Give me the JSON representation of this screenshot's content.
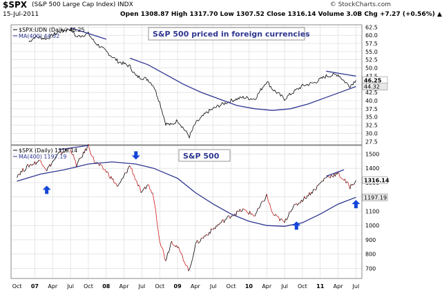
{
  "header": {
    "symbol": "$SPX",
    "description": "(S&P 500 Large Cap Index)  INDX",
    "date": "15-Jul-2011",
    "quote": "Open 1308.87   High 1317.70   Low 1307.52   Close 1316.14   Volume 3.0B   Chg +7.27 (+0.56%) ▲",
    "credit": "© StockCharts.com"
  },
  "colors": {
    "price_line": "#000000",
    "price_down": "#cc1a1a",
    "moving_average": "#2d3591",
    "annotation": "#2d3591",
    "arrow": "#1446d8",
    "grid": "#d7d7d7",
    "panel_divider": "#6c6c6c"
  },
  "icons": {
    "signal_arrows": "blue-arrow-icon"
  },
  "chart_data": [
    {
      "type": "line",
      "title": "S&P 500 priced in foreign currencies",
      "legend": [
        "$SPX:UDN (Daily) 46.25",
        "MA(400) 44.32"
      ],
      "legend_position": "top-left",
      "ylim": [
        26.5,
        63.2
      ],
      "y_ticks": [
        27.5,
        30.0,
        32.5,
        35.0,
        37.5,
        40.0,
        42.5,
        45.0,
        47.5,
        50.0,
        52.5,
        55.0,
        57.5,
        60.0,
        62.5
      ],
      "y_tick_labels": [
        "27.5",
        "30.0",
        "32.5",
        "35.0",
        "37.5",
        "40.0",
        "42.5",
        "45.0",
        "47.5",
        "50.0",
        "52.5",
        "55.0",
        "57.5",
        "60.0",
        "62.5"
      ],
      "last_value_labels": [
        "46.25",
        "44.32"
      ],
      "grid": true,
      "series": [
        {
          "name": "$SPX:UDN (Daily)",
          "x": [
            "2006-12",
            "2007-01",
            "2007-03",
            "2007-05",
            "2007-07",
            "2007-08",
            "2007-10",
            "2007-11",
            "2008-01",
            "2008-03",
            "2008-05",
            "2008-06",
            "2008-08",
            "2008-09",
            "2008-10",
            "2008-11",
            "2008-12",
            "2009-01",
            "2009-03",
            "2009-04",
            "2009-06",
            "2009-08",
            "2009-10",
            "2009-12",
            "2010-02",
            "2010-04",
            "2010-05",
            "2010-07",
            "2010-08",
            "2010-10",
            "2010-12",
            "2011-02",
            "2011-04",
            "2011-05",
            "2011-06",
            "2011-07"
          ],
          "values": [
            58.0,
            59.5,
            59.0,
            61.0,
            62.0,
            59.5,
            60.5,
            58.0,
            55.0,
            52.0,
            50.5,
            47.5,
            46.5,
            44.5,
            39.5,
            33.0,
            32.5,
            34.0,
            29.0,
            33.0,
            36.5,
            38.5,
            40.0,
            41.0,
            40.5,
            46.0,
            43.5,
            40.5,
            42.0,
            44.5,
            45.5,
            47.5,
            48.0,
            46.0,
            44.5,
            46.25
          ]
        },
        {
          "name": "MA(400)",
          "x": [
            "2008-05",
            "2008-08",
            "2008-11",
            "2009-02",
            "2009-05",
            "2009-08",
            "2009-11",
            "2010-02",
            "2010-05",
            "2010-08",
            "2010-11",
            "2011-02",
            "2011-05",
            "2011-07"
          ],
          "values": [
            53.0,
            51.0,
            48.0,
            45.0,
            42.5,
            40.5,
            38.5,
            37.5,
            37.0,
            37.5,
            39.0,
            41.0,
            43.0,
            44.32
          ]
        }
      ],
      "annotations": [
        {
          "kind": "trendline",
          "x": [
            "2007-07",
            "2008-01"
          ],
          "y": [
            62.3,
            58.8
          ]
        },
        {
          "kind": "trendline",
          "x": [
            "2011-02",
            "2011-07"
          ],
          "y": [
            49.0,
            47.5
          ]
        }
      ]
    },
    {
      "type": "line",
      "title": "S&P 500",
      "legend": [
        "$SPX (Daily) 1316.14",
        "MA(400) 1197.19"
      ],
      "legend_position": "top-left",
      "ylim": [
        630,
        1560
      ],
      "y_ticks": [
        700,
        800,
        900,
        1000,
        1100,
        1200,
        1300,
        1400,
        1500
      ],
      "y_tick_labels": [
        "700",
        "800",
        "900",
        "1000",
        "1100",
        "1200",
        "1300",
        "1400",
        "1500"
      ],
      "last_value_labels": [
        "1316.14",
        "1197.19"
      ],
      "grid": true,
      "x_tick_labels": [
        "Oct",
        "07",
        "Apr",
        "Jul",
        "Oct",
        "08",
        "Apr",
        "Jul",
        "Oct",
        "09",
        "Apr",
        "Jul",
        "Oct",
        "10",
        "Apr",
        "Jul",
        "Oct",
        "11",
        "Apr",
        "Jul"
      ],
      "series": [
        {
          "name": "$SPX (Daily)",
          "x": [
            "2006-10",
            "2006-12",
            "2007-02",
            "2007-03",
            "2007-05",
            "2007-07",
            "2007-08",
            "2007-10",
            "2007-11",
            "2008-01",
            "2008-03",
            "2008-05",
            "2008-07",
            "2008-08",
            "2008-09",
            "2008-10",
            "2008-11",
            "2008-12",
            "2009-01",
            "2009-03",
            "2009-04",
            "2009-06",
            "2009-08",
            "2009-10",
            "2009-12",
            "2010-02",
            "2010-04",
            "2010-05",
            "2010-07",
            "2010-08",
            "2010-10",
            "2010-12",
            "2011-02",
            "2011-04",
            "2011-05",
            "2011-06",
            "2011-07"
          ],
          "values": [
            1350,
            1420,
            1455,
            1390,
            1500,
            1540,
            1420,
            1560,
            1450,
            1380,
            1270,
            1420,
            1220,
            1290,
            1200,
            900,
            760,
            890,
            850,
            680,
            870,
            940,
            1010,
            1070,
            1110,
            1070,
            1210,
            1080,
            1020,
            1110,
            1180,
            1250,
            1340,
            1360,
            1320,
            1270,
            1316.14
          ]
        },
        {
          "name": "MA(400)",
          "x": [
            "2006-10",
            "2007-02",
            "2007-06",
            "2007-10",
            "2008-02",
            "2008-06",
            "2008-09",
            "2009-01",
            "2009-04",
            "2009-07",
            "2009-10",
            "2010-01",
            "2010-04",
            "2010-07",
            "2010-10",
            "2011-01",
            "2011-04",
            "2011-07"
          ],
          "values": [
            1310,
            1360,
            1390,
            1430,
            1445,
            1430,
            1400,
            1330,
            1230,
            1150,
            1080,
            1030,
            1000,
            995,
            1020,
            1080,
            1150,
            1197.19
          ]
        }
      ],
      "annotations": [
        {
          "kind": "trendline",
          "x": [
            "2007-05",
            "2007-10"
          ],
          "y": [
            1530,
            1560
          ]
        },
        {
          "kind": "trendline",
          "x": [
            "2011-02",
            "2011-05"
          ],
          "y": [
            1345,
            1390
          ]
        },
        {
          "kind": "arrow-up",
          "x": "2007-03",
          "y": 1250
        },
        {
          "kind": "arrow-down",
          "x": "2008-06",
          "y": 1490
        },
        {
          "kind": "arrow-up",
          "x": "2010-09",
          "y": 1000
        },
        {
          "kind": "arrow-up",
          "x": "2011-07",
          "y": 1150
        }
      ]
    }
  ]
}
